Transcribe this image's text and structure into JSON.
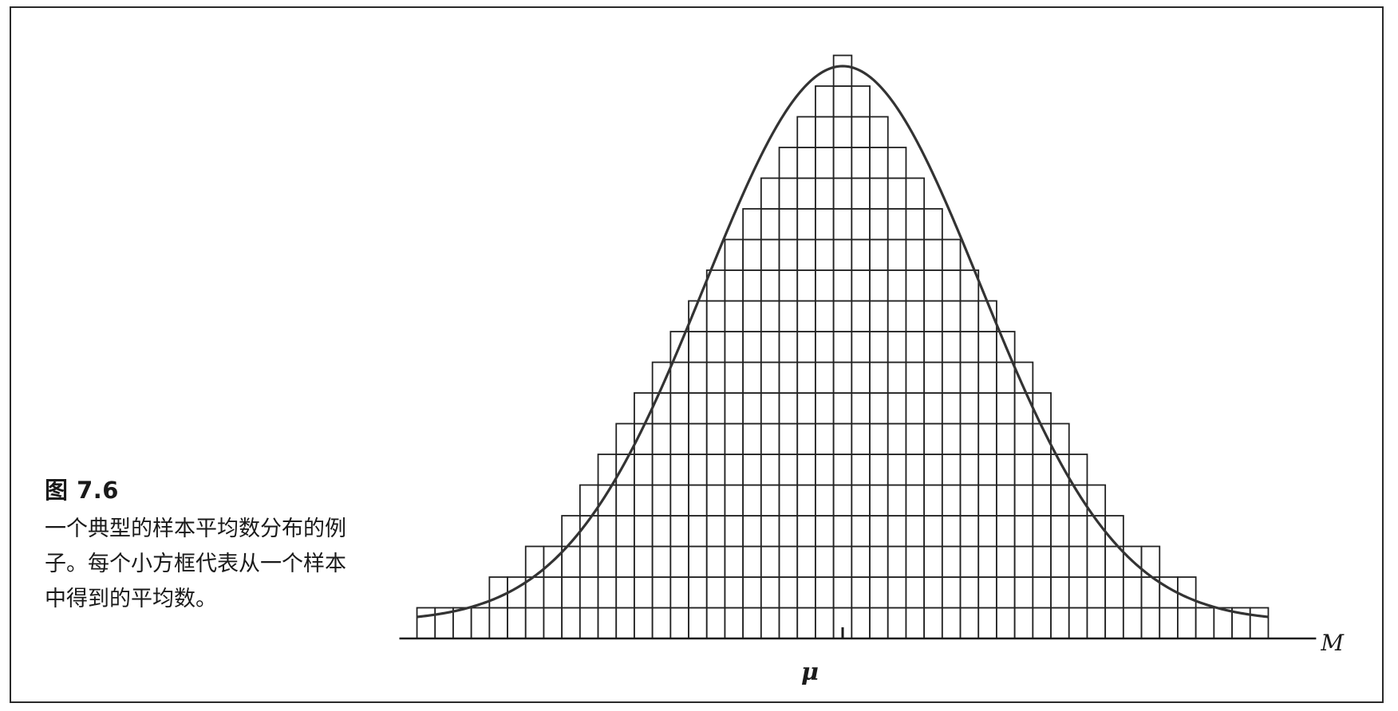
{
  "figure": {
    "label": "图 7.6",
    "caption": "一个典型的样本平均数分布的例子。每个小方框代表从一个样本中得到的平均数。"
  },
  "chart_data": {
    "type": "bar",
    "description_style": "stacked unit boxes with overlaid normal curve",
    "x_axis_symbol": "M",
    "mean_symbol": "μ",
    "x": [
      -23,
      -22,
      -21,
      -20,
      -19,
      -18,
      -17,
      -16,
      -15,
      -14,
      -13,
      -12,
      -11,
      -10,
      -9,
      -8,
      -7,
      -6,
      -5,
      -4,
      -3,
      -2,
      -1,
      0,
      1,
      2,
      3,
      4,
      5,
      6,
      7,
      8,
      9,
      10,
      11,
      12,
      13,
      14,
      15,
      16,
      17,
      18,
      19,
      20,
      21,
      22,
      23
    ],
    "values": [
      1,
      1,
      1,
      1,
      2,
      2,
      3,
      3,
      4,
      5,
      6,
      7,
      8,
      9,
      10,
      11,
      12,
      13,
      14,
      15,
      16,
      17,
      18,
      19,
      18,
      17,
      16,
      15,
      14,
      13,
      12,
      11,
      10,
      9,
      8,
      7,
      6,
      5,
      4,
      3,
      3,
      2,
      2,
      1,
      1,
      1,
      1
    ],
    "curve": "normal",
    "grid": false,
    "legend": "none"
  }
}
